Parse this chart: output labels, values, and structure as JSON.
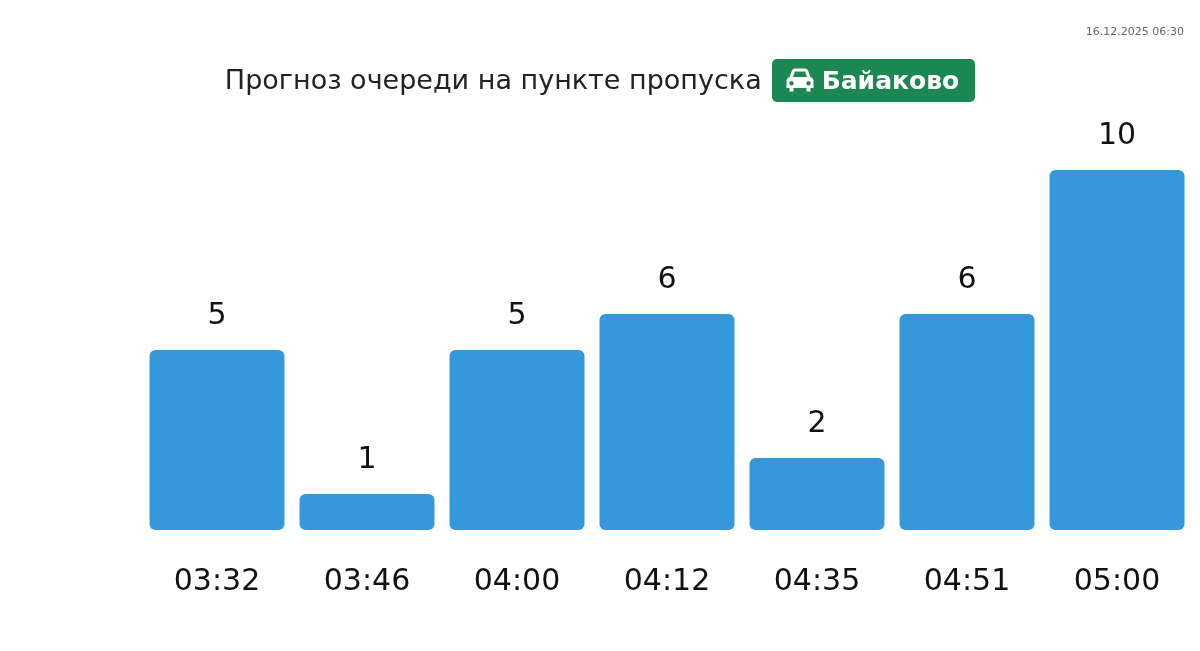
{
  "chart_data": {
    "type": "bar",
    "title": "Прогноз очереди на пункте пропуска",
    "subtitle": "Байаково",
    "annotations": [
      "16.12.2025 06:30"
    ],
    "categories": [
      "03:32",
      "03:46",
      "04:00",
      "04:12",
      "04:35",
      "04:51",
      "05:00"
    ],
    "values": [
      5,
      1,
      5,
      6,
      2,
      6,
      10
    ],
    "color": "#3598db",
    "data_labels": true
  }
}
